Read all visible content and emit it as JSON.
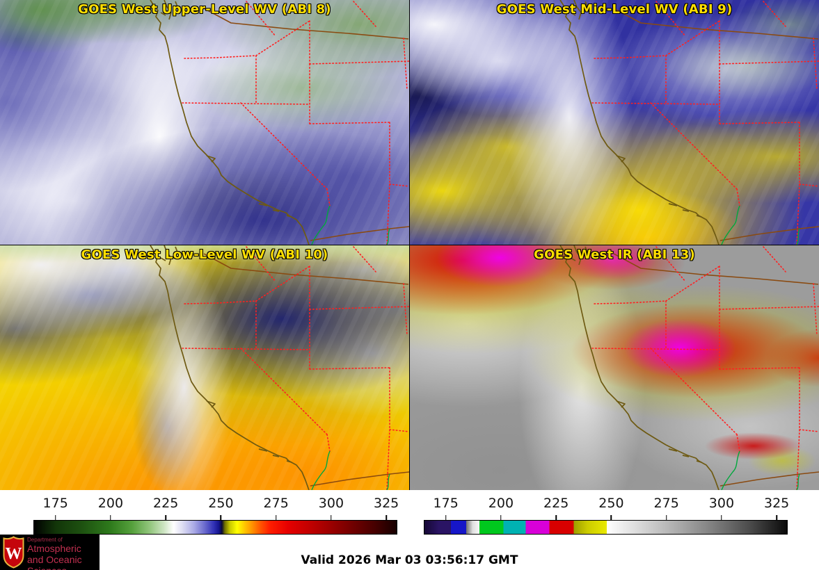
{
  "panels": [
    {
      "title": "GOES West Upper-Level WV (ABI 8)"
    },
    {
      "title": "GOES West Mid-Level WV (ABI 9)"
    },
    {
      "title": "GOES West Low-Level WV (ABI 10)"
    },
    {
      "title": "GOES West IR (ABI 13)"
    }
  ],
  "colorbars": [
    {
      "name": "water-vapor-enhancement-scale",
      "range": [
        165,
        330
      ],
      "ticks": [
        175,
        200,
        225,
        250,
        275,
        300,
        325
      ],
      "stops": [
        [
          0,
          "#000000"
        ],
        [
          6,
          "#123509"
        ],
        [
          13,
          "#1d5010"
        ],
        [
          21,
          "#2e7a1c"
        ],
        [
          27,
          "#55a03c"
        ],
        [
          32,
          "#93c67e"
        ],
        [
          36,
          "#d0e6c6"
        ],
        [
          38.5,
          "#ffffff"
        ],
        [
          41,
          "#dcdcf2"
        ],
        [
          44,
          "#acace6"
        ],
        [
          47,
          "#6c6cce"
        ],
        [
          49.5,
          "#3232b6"
        ],
        [
          51,
          "#14148e"
        ],
        [
          51.8,
          "#0a0a32"
        ],
        [
          52.6,
          "#6e6e00"
        ],
        [
          54,
          "#c8c800"
        ],
        [
          56,
          "#ffff00"
        ],
        [
          58,
          "#ffc800"
        ],
        [
          60,
          "#ff9600"
        ],
        [
          62.5,
          "#ff5400"
        ],
        [
          65,
          "#ff1e00"
        ],
        [
          70,
          "#e60000"
        ],
        [
          76,
          "#c20000"
        ],
        [
          82,
          "#9a0000"
        ],
        [
          88,
          "#700000"
        ],
        [
          94,
          "#460000"
        ],
        [
          100,
          "#160000"
        ]
      ]
    },
    {
      "name": "ir-enhancement-scale",
      "range": [
        165,
        330
      ],
      "ticks": [
        175,
        200,
        225,
        250,
        275,
        300,
        325
      ],
      "stops": [
        [
          0,
          "#160835"
        ],
        [
          4,
          "#2a1464"
        ],
        [
          7.3,
          "#2a1464"
        ],
        [
          7.3,
          "#1616c8"
        ],
        [
          11.5,
          "#1616c8"
        ],
        [
          11.5,
          "#6e6e6e"
        ],
        [
          13.3,
          "#e0e0e0"
        ],
        [
          15.2,
          "#f8f8f8"
        ],
        [
          15.2,
          "#00c81e"
        ],
        [
          21.8,
          "#00c81e"
        ],
        [
          21.8,
          "#00b2b2"
        ],
        [
          27.9,
          "#00b2b2"
        ],
        [
          27.9,
          "#d800d8"
        ],
        [
          34.5,
          "#d800d8"
        ],
        [
          34.5,
          "#d80000"
        ],
        [
          41.2,
          "#d80000"
        ],
        [
          41.2,
          "#9e9e00"
        ],
        [
          45,
          "#cccc00"
        ],
        [
          50.3,
          "#eaea00"
        ],
        [
          50.3,
          "#ffffff"
        ],
        [
          60,
          "#d6d6d6"
        ],
        [
          70,
          "#ababab"
        ],
        [
          80,
          "#7d7d7d"
        ],
        [
          90,
          "#4a4a4a"
        ],
        [
          100,
          "#0a0a0a"
        ]
      ]
    }
  ],
  "footer": {
    "timestamp": "Valid 2026 Mar 03 03:56:17 GMT",
    "logo": {
      "dept_prefix": "Department of",
      "line1": "Atmospheric",
      "line2": "and Oceanic Sciences",
      "crest_letter": "W"
    }
  },
  "colors": {
    "title_text": "#ffdf00",
    "state_border": "#ff2020",
    "coastline": "#6e5a12",
    "international_border": "#8a4a10",
    "river": "#00a83c",
    "crest_red": "#c5050c",
    "crest_gold": "#e6b33c"
  }
}
